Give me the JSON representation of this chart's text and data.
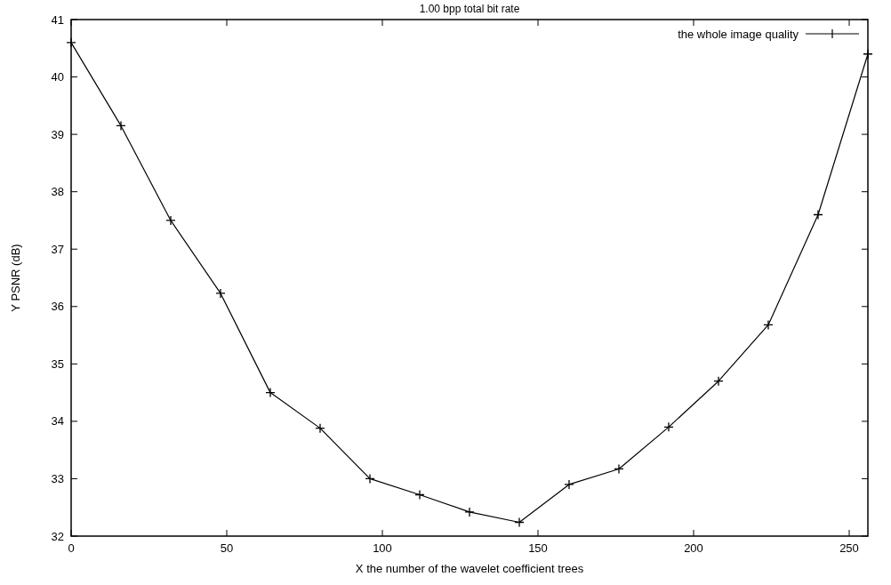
{
  "chart_data": {
    "type": "line",
    "title": "1.00 bpp total bit rate",
    "xlabel": "X the number of the wavelet coefficient trees",
    "ylabel": "Y PSNR (dB)",
    "x": [
      0,
      16,
      32,
      48,
      64,
      80,
      96,
      112,
      128,
      144,
      160,
      176,
      192,
      208,
      224,
      240,
      256
    ],
    "series": [
      {
        "name": "the whole image quality",
        "color": "#000000",
        "values": [
          40.6,
          39.15,
          37.5,
          36.23,
          34.5,
          33.88,
          33.0,
          32.72,
          32.42,
          32.24,
          32.9,
          33.17,
          33.9,
          34.7,
          35.68,
          37.6,
          40.4
        ]
      }
    ],
    "xlim": [
      0,
      256
    ],
    "xticks": [
      0,
      50,
      100,
      150,
      200,
      250
    ],
    "ylim": [
      32,
      41
    ],
    "yticks": [
      32,
      33,
      34,
      35,
      36,
      37,
      38,
      39,
      40,
      41
    ],
    "grid": false,
    "legend": "top right",
    "marker": "cross",
    "line_style": "solid"
  }
}
